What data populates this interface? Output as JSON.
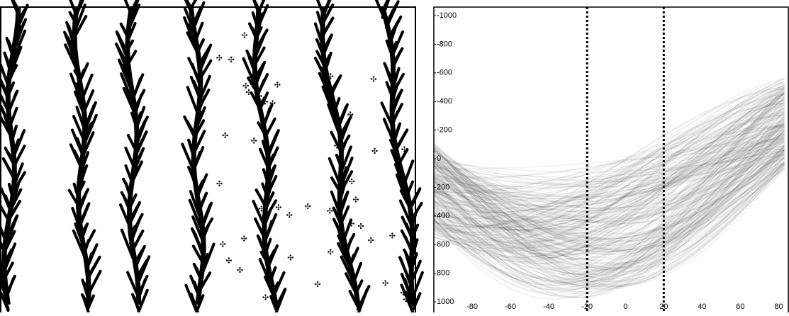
{
  "chart_data": {
    "type": "heatmap",
    "xlim": [
      -100,
      85
    ],
    "ylim": [
      -1000,
      1000
    ],
    "xticks": [
      -80,
      -60,
      -40,
      -20,
      0,
      20,
      40,
      60,
      80
    ],
    "yticks": [
      -1000,
      -800,
      -600,
      -400,
      -200,
      0,
      200,
      400,
      600,
      800,
      1000
    ],
    "vlines": [
      -20,
      20
    ]
  }
}
